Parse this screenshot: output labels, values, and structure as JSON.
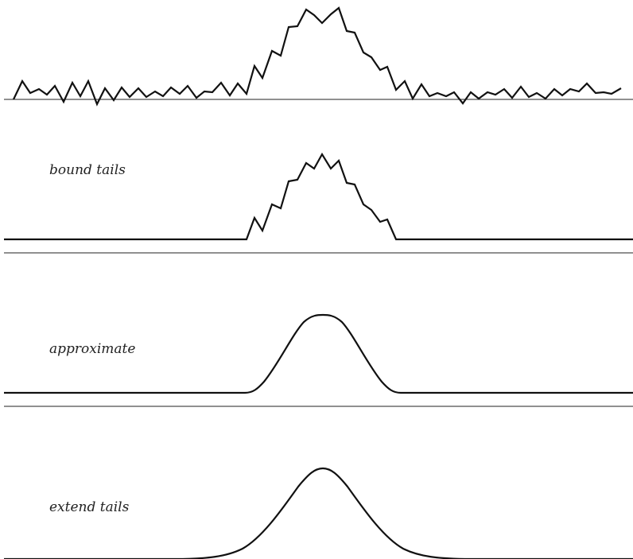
{
  "labels": {
    "bound": "bound tails",
    "approximate": "approximate",
    "extend": "extend tails"
  }
}
